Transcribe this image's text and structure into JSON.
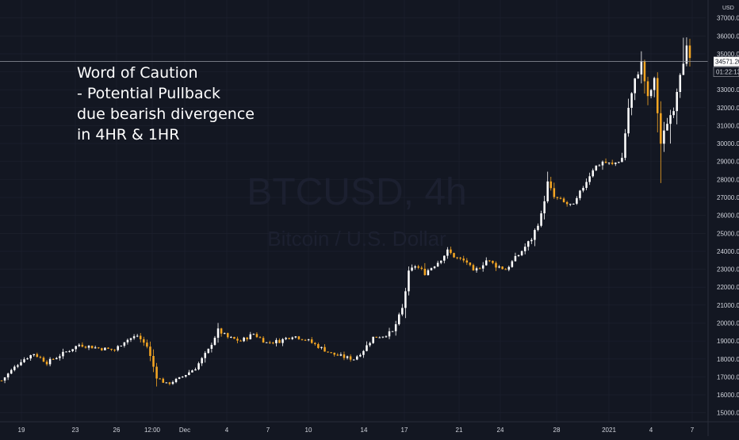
{
  "chart_data": {
    "type": "candlestick",
    "watermark": {
      "symbol": "BTCUSD, 4h",
      "description": "Bitcoin / U.S. Dollar"
    },
    "annotation": [
      "Word of Caution",
      "- Potential Pullback",
      "due bearish divergence",
      "in 4HR & 1HR"
    ],
    "currency": "USD",
    "last_price": "34571.20",
    "bar_countdown": "01:22:13",
    "ylim": [
      14500,
      38000
    ],
    "y_ticks": [
      "15000.00",
      "16000.00",
      "17000.00",
      "18000.00",
      "19000.00",
      "20000.00",
      "21000.00",
      "22000.00",
      "23000.00",
      "24000.00",
      "25000.00",
      "26000.00",
      "27000.00",
      "28000.00",
      "29000.00",
      "30000.00",
      "31000.00",
      "32000.00",
      "33000.00",
      "34000.00",
      "35000.00",
      "36000.00",
      "37000.00"
    ],
    "x_ticks": [
      "19",
      "23",
      "26",
      "12:00",
      "Dec",
      "4",
      "7",
      "10",
      "14",
      "17",
      "21",
      "24",
      "28",
      "2021",
      "4",
      "7"
    ],
    "colors": {
      "up": "#ffffff",
      "down": "#f5a623",
      "background": "#131722",
      "grid": "#1e2230"
    },
    "price_path": [
      [
        0,
        16800
      ],
      [
        6,
        17900
      ],
      [
        10,
        18300
      ],
      [
        14,
        17800
      ],
      [
        20,
        18400
      ],
      [
        24,
        18800
      ],
      [
        30,
        18600
      ],
      [
        35,
        18500
      ],
      [
        38,
        19000
      ],
      [
        42,
        19300
      ],
      [
        45,
        18700
      ],
      [
        48,
        17000
      ],
      [
        51,
        16600
      ],
      [
        55,
        16900
      ],
      [
        60,
        17500
      ],
      [
        64,
        18500
      ],
      [
        67,
        19600
      ],
      [
        70,
        19200
      ],
      [
        74,
        19000
      ],
      [
        78,
        19400
      ],
      [
        82,
        18900
      ],
      [
        86,
        19000
      ],
      [
        90,
        19300
      ],
      [
        94,
        19100
      ],
      [
        98,
        18700
      ],
      [
        102,
        18300
      ],
      [
        106,
        18100
      ],
      [
        109,
        18000
      ],
      [
        112,
        18500
      ],
      [
        115,
        19200
      ],
      [
        118,
        19300
      ],
      [
        121,
        19500
      ],
      [
        124,
        20800
      ],
      [
        126,
        22800
      ],
      [
        128,
        23200
      ],
      [
        131,
        22800
      ],
      [
        135,
        23400
      ],
      [
        138,
        24000
      ],
      [
        141,
        23600
      ],
      [
        144,
        23400
      ],
      [
        146,
        22800
      ],
      [
        150,
        23500
      ],
      [
        153,
        23200
      ],
      [
        156,
        23000
      ],
      [
        160,
        23800
      ],
      [
        164,
        24700
      ],
      [
        167,
        26000
      ],
      [
        169,
        27800
      ],
      [
        171,
        27000
      ],
      [
        174,
        26700
      ],
      [
        177,
        26500
      ],
      [
        180,
        27600
      ],
      [
        183,
        28600
      ],
      [
        186,
        29000
      ],
      [
        189,
        28800
      ],
      [
        192,
        29200
      ],
      [
        194,
        32000
      ],
      [
        196,
        33500
      ],
      [
        198,
        34500
      ],
      [
        200,
        32500
      ],
      [
        202,
        33500
      ],
      [
        204,
        30000
      ],
      [
        206,
        31200
      ],
      [
        208,
        32000
      ],
      [
        210,
        34000
      ],
      [
        212,
        35300
      ],
      [
        213,
        34571
      ]
    ]
  }
}
